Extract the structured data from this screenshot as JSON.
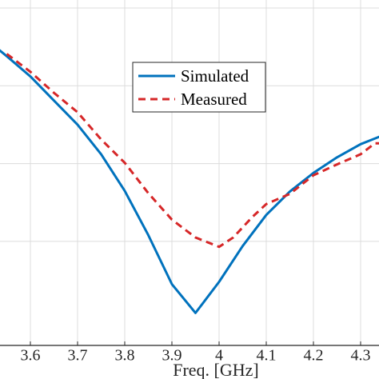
{
  "chart_data": {
    "type": "line",
    "xlabel": "Freq. [GHz]",
    "ylabel": "",
    "xlim": [
      3.5,
      4.35
    ],
    "ylim": [
      -40,
      -5
    ],
    "x_ticks": [
      3.6,
      3.7,
      3.8,
      3.9,
      4.0,
      4.1,
      4.2,
      4.3
    ],
    "x_tick_labels": [
      "3.6",
      "3.7",
      "3.8",
      "3.9",
      "4",
      "4.1",
      "4.2",
      "4.3"
    ],
    "y_gridlines": [
      -35,
      -25,
      -15,
      -5
    ],
    "grid": true,
    "legend_position": "top-center-right",
    "series": [
      {
        "name": "Simulated",
        "color": "#0072BD",
        "style": "solid",
        "x": [
          3.5,
          3.55,
          3.6,
          3.65,
          3.7,
          3.75,
          3.8,
          3.85,
          3.9,
          3.95,
          4.0,
          4.05,
          4.1,
          4.15,
          4.2,
          4.25,
          4.3,
          4.35
        ],
        "y": [
          -8.7,
          -11.2,
          -13.8,
          -16.9,
          -20.0,
          -23.8,
          -28.5,
          -34.2,
          -40.5,
          -44.2,
          -40.2,
          -35.6,
          -31.6,
          -28.6,
          -26.2,
          -24.2,
          -22.5,
          -21.3
        ]
      },
      {
        "name": "Measured",
        "color": "#D62728",
        "style": "dashed",
        "x": [
          3.55,
          3.6,
          3.65,
          3.7,
          3.75,
          3.8,
          3.85,
          3.9,
          3.95,
          4.0,
          4.03,
          4.07,
          4.1,
          4.15,
          4.2,
          4.25,
          4.3,
          4.33,
          4.35
        ],
        "y": [
          -10.9,
          -13.2,
          -15.9,
          -18.4,
          -21.9,
          -24.9,
          -28.8,
          -32.2,
          -34.5,
          -35.7,
          -34.5,
          -31.9,
          -30.2,
          -28.9,
          -26.5,
          -25.1,
          -23.8,
          -22.4,
          -22.4
        ]
      }
    ]
  }
}
